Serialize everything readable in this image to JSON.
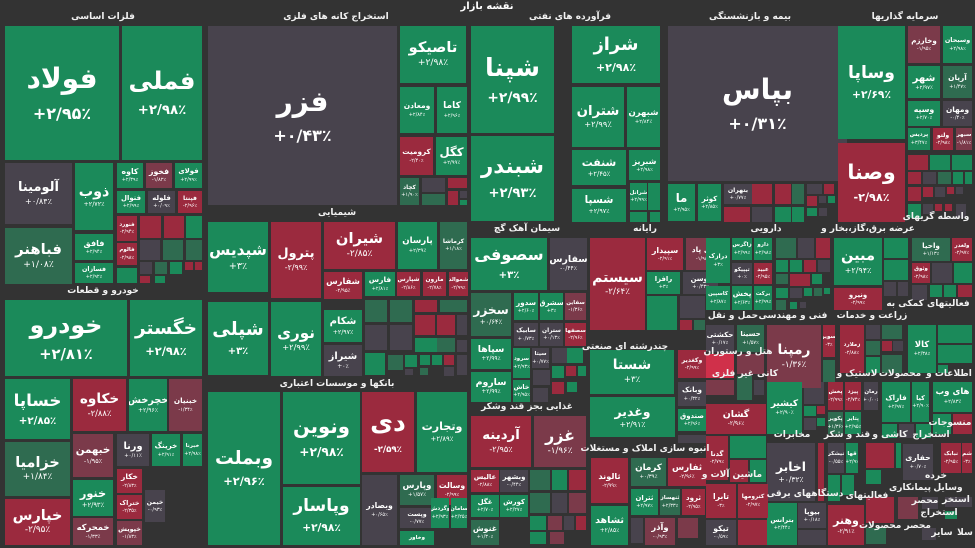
{
  "header": {
    "title": "نقشه بازار"
  },
  "colors": {
    "background": "#333333",
    "up": "#1b8a5a",
    "up_weak": "#2f6b50",
    "flat": "#48434d",
    "down_weak": "#7b3a4a",
    "down": "#9b2a3e",
    "down_bright": "#d0304a"
  },
  "sectors": [
    "فلزات اساسی",
    "استخراج کانه های فلزی",
    "فرآورده های نفتی",
    "بیمه و بازنشستگی",
    "سرمایه گذاریها",
    "شیمیایی",
    "خودرو و قطعات",
    "بانکها و موسسات اعتباری",
    "سیمان آهک گچ",
    "رایانه",
    "دارویی",
    "عرضه برق،گاز،بخار و",
    "واسطه گریهای",
    "چندرشته ای صنعتی",
    "غذایی بجز قند وشکر",
    "انبوه سازی املاک و مستغلات",
    "حمل و نقل",
    "فنی و مهندسی",
    "زراعت و خدمات",
    "فعالیتهای کمکی به",
    "هتل و رستوران",
    "کانی غیر فلزی",
    "لاستیک و",
    "محصولات",
    "اطلاعات و",
    "ماشین آلات و",
    "مخابرات",
    "قند و شکر",
    "کاشی و",
    "استخراج",
    "منسوجات",
    "دستگاههای برقی",
    "فعالیتهای",
    "پیمانکاری",
    "وسایل",
    "خرده",
    "استخر",
    "استخراج",
    "محصر",
    "محصر محصولات",
    "سایر",
    "سلا"
  ],
  "tiles": [
    {
      "symbol": "فولاد",
      "change": "+۲/۹۵٪",
      "tone": "up"
    },
    {
      "symbol": "فملی",
      "change": "+۲/۹۸٪",
      "tone": "up"
    },
    {
      "symbol": "آلومینا",
      "change": "+۰/۸۴٪",
      "tone": "flat"
    },
    {
      "symbol": "فباهنر",
      "change": "+۱/۰۸٪",
      "tone": "up_weak"
    },
    {
      "symbol": "ذوب",
      "change": "+۲/۷۲٪",
      "tone": "up"
    },
    {
      "symbol": "فافق",
      "change": "+۲/۹۴٪",
      "tone": "up"
    },
    {
      "symbol": "فسازان",
      "change": "+۲/۹۲٪",
      "tone": "up"
    },
    {
      "symbol": "کاوه",
      "change": "+۲/۳۹٪",
      "tone": "up"
    },
    {
      "symbol": "فخوز",
      "change": "-۱/۸۲٪",
      "tone": "down_weak"
    },
    {
      "symbol": "فولای",
      "change": "+۲/۹۹٪",
      "tone": "up"
    },
    {
      "symbol": "فنوال",
      "change": "+۲/۹۹٪",
      "tone": "up"
    },
    {
      "symbol": "فلوله",
      "change": "+۰/۰۹٪",
      "tone": "flat"
    },
    {
      "symbol": "فپنتا",
      "change": "-۲/۹۶٪",
      "tone": "down"
    },
    {
      "symbol": "فنورد",
      "change": "-۲/۹۴٪",
      "tone": "down"
    },
    {
      "symbol": "فالوم",
      "change": "-۲/۹۸٪",
      "tone": "down"
    },
    {
      "symbol": "فزر",
      "change": "+۰/۴۳٪",
      "tone": "flat"
    },
    {
      "symbol": "تاصیکو",
      "change": "+۲/۹۸٪",
      "tone": "up"
    },
    {
      "symbol": "ومعادن",
      "change": "+۲/۸۴٪",
      "tone": "up"
    },
    {
      "symbol": "کاما",
      "change": "+۲/۹۶٪",
      "tone": "up"
    },
    {
      "symbol": "کرومیت",
      "change": "-۲/۴۰٪",
      "tone": "down"
    },
    {
      "symbol": "کگل",
      "change": "+۲/۹۹٪",
      "tone": "up"
    },
    {
      "symbol": "کچاد",
      "change": "+۱/۹۰٪",
      "tone": "up_weak"
    },
    {
      "symbol": "شپدیس",
      "change": "+۳٪",
      "tone": "up"
    },
    {
      "symbol": "پترول",
      "change": "-۲/۹۹٪",
      "tone": "down"
    },
    {
      "symbol": "شپلی",
      "change": "+۳٪",
      "tone": "up"
    },
    {
      "symbol": "نوری",
      "change": "+۲/۹۹٪",
      "tone": "up"
    },
    {
      "symbol": "شیران",
      "change": "-۲/۸۵٪",
      "tone": "down"
    },
    {
      "symbol": "پارسان",
      "change": "+۲/۳۹٪",
      "tone": "up"
    },
    {
      "symbol": "کرماشا",
      "change": "+۱/۱۸٪",
      "tone": "up_weak"
    },
    {
      "symbol": "شفارس",
      "change": "-۲/۹۵٪",
      "tone": "down"
    },
    {
      "symbol": "فارس",
      "change": "+۲/۸۱٪",
      "tone": "up"
    },
    {
      "symbol": "شپارس",
      "change": "-۲/۸۶٪",
      "tone": "down"
    },
    {
      "symbol": "مارون",
      "change": "-۲/۷۸٪",
      "tone": "down"
    },
    {
      "symbol": "شموالد",
      "change": "-۲/۹۹٪",
      "tone": "down"
    },
    {
      "symbol": "شکام",
      "change": "+۲/۹۷٪",
      "tone": "up"
    },
    {
      "symbol": "شیراز",
      "change": "+۰٪",
      "tone": "flat"
    },
    {
      "symbol": "وبملت",
      "change": "+۲/۹۶٪",
      "tone": "up"
    },
    {
      "symbol": "ونوین",
      "change": "+۲/۹۸٪",
      "tone": "up"
    },
    {
      "symbol": "وپاسار",
      "change": "+۲/۹۸٪",
      "tone": "up"
    },
    {
      "symbol": "دی",
      "change": "-۲/۵۹٪",
      "tone": "down"
    },
    {
      "symbol": "وتجارت",
      "change": "+۲/۸۹٪",
      "tone": "up"
    },
    {
      "symbol": "وبصادر",
      "change": "+۰/۶۵٪",
      "tone": "flat"
    },
    {
      "symbol": "وپارس",
      "change": "+۱/۵۷٪",
      "tone": "up_weak"
    },
    {
      "symbol": "وسالت",
      "change": "-۲/۹۹٪",
      "tone": "down"
    },
    {
      "symbol": "وپست",
      "change": "-۰/۷۷٪",
      "tone": "flat"
    },
    {
      "symbol": "وخاور",
      "change": "+۲/۹۷٪",
      "tone": "up"
    },
    {
      "symbol": "وگردش",
      "change": "+۲/۹۳٪",
      "tone": "up"
    },
    {
      "symbol": "سامان",
      "change": "+۲/۲۵٪",
      "tone": "up"
    },
    {
      "symbol": "خودرو",
      "change": "+۲/۸۱٪",
      "tone": "up"
    },
    {
      "symbol": "خگستر",
      "change": "+۲/۹۸٪",
      "tone": "up"
    },
    {
      "symbol": "خساپا",
      "change": "+۲/۸۵٪",
      "tone": "up"
    },
    {
      "symbol": "خکاوه",
      "change": "-۲/۸۸٪",
      "tone": "down"
    },
    {
      "symbol": "خچرخش",
      "change": "+۲/۹۶٪",
      "tone": "up"
    },
    {
      "symbol": "خبنیان",
      "change": "-۱/۳۴٪",
      "tone": "down_weak"
    },
    {
      "symbol": "خزامیا",
      "change": "+۱/۸۴٪",
      "tone": "up_weak"
    },
    {
      "symbol": "خپارس",
      "change": "-۲/۹۵٪",
      "tone": "down"
    },
    {
      "symbol": "خبهمن",
      "change": "-۱/۹۵٪",
      "tone": "down_weak"
    },
    {
      "symbol": "ورنا",
      "change": "+۰/۱۱٪",
      "tone": "flat"
    },
    {
      "symbol": "خرینگ",
      "change": "+۲/۹۱٪",
      "tone": "up"
    },
    {
      "symbol": "خبرنا",
      "change": "+۲/۹۸٪",
      "tone": "up"
    },
    {
      "symbol": "خنور",
      "change": "+۲/۹۳٪",
      "tone": "up"
    },
    {
      "symbol": "خمحرکه",
      "change": "-۱/۳۳٪",
      "tone": "down_weak"
    },
    {
      "symbol": "خکار",
      "change": "-۲/۸۳٪",
      "tone": "down"
    },
    {
      "symbol": "ختراک",
      "change": "-۲/۳۵٪",
      "tone": "down"
    },
    {
      "symbol": "خپویش",
      "change": "-۱/۸۳٪",
      "tone": "down_weak"
    },
    {
      "symbol": "خیمن",
      "change": "-۰/۹۳٪",
      "tone": "flat"
    },
    {
      "symbol": "شپنا",
      "change": "+۲/۹۹٪",
      "tone": "up"
    },
    {
      "symbol": "شبندر",
      "change": "+۲/۹۳٪",
      "tone": "up"
    },
    {
      "symbol": "شراز",
      "change": "+۲/۹۸٪",
      "tone": "up"
    },
    {
      "symbol": "شتران",
      "change": "+۲/۹۹٪",
      "tone": "up"
    },
    {
      "symbol": "شبهرن",
      "change": "+۲/۸۴٪",
      "tone": "up"
    },
    {
      "symbol": "شنفت",
      "change": "+۲/۴۵٪",
      "tone": "up"
    },
    {
      "symbol": "شبریز",
      "change": "+۲/۹۸٪",
      "tone": "up"
    },
    {
      "symbol": "شسپا",
      "change": "+۲/۹۷٪",
      "tone": "up"
    },
    {
      "symbol": "شرانل",
      "change": "+۲/۹۹٪",
      "tone": "up"
    },
    {
      "symbol": "بپاس",
      "change": "+۰/۳۱٪",
      "tone": "flat"
    },
    {
      "symbol": "ما",
      "change": "+۲/۹۵٪",
      "tone": "up"
    },
    {
      "symbol": "کوثر",
      "change": "+۲/۸۵٪",
      "tone": "up"
    },
    {
      "symbol": "بتهران",
      "change": "+۰/۷۷٪",
      "tone": "flat"
    },
    {
      "symbol": "وساپا",
      "change": "+۲/۶۹٪",
      "tone": "up"
    },
    {
      "symbol": "وصنا",
      "change": "-۲/۹۸٪",
      "tone": "down"
    },
    {
      "symbol": "وخارزم",
      "change": "-۱/۹۵٪",
      "tone": "down_weak"
    },
    {
      "symbol": "وسبحان",
      "change": "+۲/۹۸٪",
      "tone": "up"
    },
    {
      "symbol": "شهر",
      "change": "+۲/۹۷٪",
      "tone": "up"
    },
    {
      "symbol": "آریان",
      "change": "+۱/۴۷٪",
      "tone": "up_weak"
    },
    {
      "symbol": "وسپه",
      "change": "+۲/۷۰٪",
      "tone": "up"
    },
    {
      "symbol": "ومهان",
      "change": "-۰/۴۰٪",
      "tone": "flat"
    },
    {
      "symbol": "پردیس",
      "change": "+۳/۴۷٪",
      "tone": "up"
    },
    {
      "symbol": "ولتو",
      "change": "-۲/۹۸٪",
      "tone": "down"
    },
    {
      "symbol": "سبهر",
      "change": "-۱/۸۱٪",
      "tone": "down_weak"
    },
    {
      "symbol": "سصوفی",
      "change": "+۳٪",
      "tone": "up"
    },
    {
      "symbol": "سفارس",
      "change": "-۰/۴۴٪",
      "tone": "flat"
    },
    {
      "symbol": "سخزر",
      "change": "+۰/۶۴٪",
      "tone": "up_weak"
    },
    {
      "symbol": "سدور",
      "change": "+۲/۶۰٪",
      "tone": "up"
    },
    {
      "symbol": "سشرق",
      "change": "+۳٪",
      "tone": "up"
    },
    {
      "symbol": "سفاین",
      "change": "-۱/۳۶٪",
      "tone": "down_weak"
    },
    {
      "symbol": "سابیک",
      "change": "+۰/۷۳٪",
      "tone": "flat"
    },
    {
      "symbol": "ستران",
      "change": "+۰/۱۳٪",
      "tone": "flat"
    },
    {
      "symbol": "سصفها",
      "change": "-۲/۹۶٪",
      "tone": "down"
    },
    {
      "symbol": "سپاها",
      "change": "+۲/۹۹٪",
      "tone": "up"
    },
    {
      "symbol": "ساروم",
      "change": "+۲/۹۹٪",
      "tone": "up"
    },
    {
      "symbol": "سرود",
      "change": "+۲/۹۳٪",
      "tone": "up"
    },
    {
      "symbol": "سیتا",
      "change": "+۰/۷۷٪",
      "tone": "flat"
    },
    {
      "symbol": "خاش",
      "change": "+۲/۹۵٪",
      "tone": "up"
    },
    {
      "symbol": "سیستم",
      "change": "-۲/۶۴٪",
      "tone": "down"
    },
    {
      "symbol": "سپیدار",
      "change": "-۲/۹۱٪",
      "tone": "down"
    },
    {
      "symbol": "پی پاد",
      "change": "-۱/۹۸٪",
      "tone": "down_weak"
    },
    {
      "symbol": "رافزا",
      "change": "+۳٪",
      "tone": "up"
    },
    {
      "symbol": "توسن",
      "change": "+۰/۴۳٪",
      "tone": "flat"
    },
    {
      "symbol": "درازک",
      "change": "+۳٪",
      "tone": "up"
    },
    {
      "symbol": "زاگرس",
      "change": "+۲/۹۹٪",
      "tone": "up"
    },
    {
      "symbol": "دارو",
      "change": "+۲/۹۸٪",
      "tone": "up"
    },
    {
      "symbol": "تیپیکو",
      "change": "+۰٪",
      "tone": "flat"
    },
    {
      "symbol": "عبید",
      "change": "-۲/۹۵٪",
      "tone": "down"
    },
    {
      "symbol": "کاسپین",
      "change": "+۲/۸۷٪",
      "tone": "up"
    },
    {
      "symbol": "پخش",
      "change": "+۲/۶۳٪",
      "tone": "up"
    },
    {
      "symbol": "برکت",
      "change": "+۲/۹۹٪",
      "tone": "up"
    },
    {
      "symbol": "مبین",
      "change": "+۲/۹۴٪",
      "tone": "up"
    },
    {
      "symbol": "ونیرو",
      "change": "-۲/۹۹٪",
      "tone": "down"
    },
    {
      "symbol": "واحیا",
      "change": "+۱/۱۳٪",
      "tone": "up_weak"
    },
    {
      "symbol": "ولغدر",
      "change": "-۲/۹۷٪",
      "tone": "down"
    },
    {
      "symbol": "وثوق",
      "change": "-۲/۹۸٪",
      "tone": "down"
    },
    {
      "symbol": "شستا",
      "change": "+۳٪",
      "tone": "up"
    },
    {
      "symbol": "وغدیر",
      "change": "+۲/۹۱٪",
      "tone": "up"
    },
    {
      "symbol": "وکغدیر",
      "change": "-۲/۹۹٪",
      "tone": "down"
    },
    {
      "symbol": "وبانک",
      "change": "+۰/۳۲٪",
      "tone": "flat"
    },
    {
      "symbol": "صندوق",
      "change": "+۲/۹۶٪",
      "tone": "up"
    },
    {
      "symbol": "آردینه",
      "change": "-۲/۹۵٪",
      "tone": "down"
    },
    {
      "symbol": "غزر",
      "change": "-۱/۹۶٪",
      "tone": "down_weak"
    },
    {
      "symbol": "عالیس",
      "change": "-۲/۸۸٪",
      "tone": "down"
    },
    {
      "symbol": "وبشهر",
      "change": "-۰/۴۴٪",
      "tone": "flat"
    },
    {
      "symbol": "غگل",
      "change": "+۲/۷۰٪",
      "tone": "up"
    },
    {
      "symbol": "کورش",
      "change": "+۲/۲۷٪",
      "tone": "up"
    },
    {
      "symbol": "غنوش",
      "change": "+۱/۳۰٪",
      "tone": "up_weak"
    },
    {
      "symbol": "ثالوند",
      "change": "-۲/۹۹٪",
      "tone": "down"
    },
    {
      "symbol": "ثشاهد",
      "change": "+۲/۸۵٪",
      "tone": "up"
    },
    {
      "symbol": "کرمان",
      "change": "+۰/۳۹٪",
      "tone": "up_weak"
    },
    {
      "symbol": "ثفارس",
      "change": "-۲/۹۶٪",
      "tone": "down"
    },
    {
      "symbol": "ثتران",
      "change": "+۲/۹۷٪",
      "tone": "up"
    },
    {
      "symbol": "ثنهساز",
      "change": "+۲/۳۳٪",
      "tone": "up_weak"
    },
    {
      "symbol": "ثرود",
      "change": "-۲/۹۵٪",
      "tone": "down"
    },
    {
      "symbol": "وآذر",
      "change": "-۰/۹۳٪",
      "tone": "down_weak"
    },
    {
      "symbol": "حکشتی",
      "change": "+۰/۱۷٪",
      "tone": "flat"
    },
    {
      "symbol": "حسینا",
      "change": "+۱/۵۷٪",
      "tone": "up_weak"
    },
    {
      "symbol": "گشان",
      "change": "-۲/۹۶٪",
      "tone": "down"
    },
    {
      "symbol": "گدنا",
      "change": "-۲/۷۹٪",
      "tone": "down"
    },
    {
      "symbol": "رمپنا",
      "change": "-۱/۳۶٪",
      "tone": "down_weak"
    },
    {
      "symbol": "بسوین",
      "change": "-۳٪",
      "tone": "down"
    },
    {
      "symbol": "زملارد",
      "change": "-۲/۸۸٪",
      "tone": "down"
    },
    {
      "symbol": "کالا",
      "change": "+۲/۳۸٪",
      "tone": "up"
    },
    {
      "symbol": "کیشیر",
      "change": "+۲/۹۰٪",
      "tone": "up"
    },
    {
      "symbol": "پخش",
      "change": "-۲/۹۹٪",
      "tone": "down"
    },
    {
      "symbol": "پیزد",
      "change": "-۲/۷۴٪",
      "tone": "down"
    },
    {
      "symbol": "رمان",
      "change": "+۰/۰۰٪",
      "tone": "flat"
    },
    {
      "symbol": "پکویر",
      "change": "+۱/۳۶٪",
      "tone": "up_weak"
    },
    {
      "symbol": "پتایر",
      "change": "+۲/۹۵٪",
      "tone": "up"
    },
    {
      "symbol": "فاراک",
      "change": "+۲/۹۷٪",
      "tone": "up"
    },
    {
      "symbol": "کیا",
      "change": "+۲/۹۰٪",
      "tone": "up"
    },
    {
      "symbol": "های وب",
      "change": "+۲/۸۳٪",
      "tone": "up"
    },
    {
      "symbol": "اخابر",
      "change": "+۰/۳۲٪",
      "tone": "flat"
    },
    {
      "symbol": "نیشکر",
      "change": "-۰/۵۵٪",
      "tone": "flat"
    },
    {
      "symbol": "قها",
      "change": "+۲/۹٪",
      "tone": "up"
    },
    {
      "symbol": "حفاری",
      "change": "+۰/۷۰٪",
      "tone": "flat"
    },
    {
      "symbol": "نبابک",
      "change": "-۲/۹۵٪",
      "tone": "down"
    },
    {
      "symbol": "شم",
      "change": "-۳٪",
      "tone": "down"
    },
    {
      "symbol": "بترانس",
      "change": "+۲/۴۴٪",
      "tone": "up"
    },
    {
      "symbol": "بیوپا",
      "change": "+۰/۱۸٪",
      "tone": "flat"
    },
    {
      "symbol": "تابرا",
      "change": "-۳٪",
      "tone": "down"
    },
    {
      "symbol": "کترومها",
      "change": "-۲/۹۷٪",
      "tone": "down"
    },
    {
      "symbol": "تیکو",
      "change": "-۰/۵۹٪",
      "tone": "flat"
    },
    {
      "symbol": "وهنر",
      "change": "-۲/۹۱٪",
      "tone": "down"
    }
  ]
}
